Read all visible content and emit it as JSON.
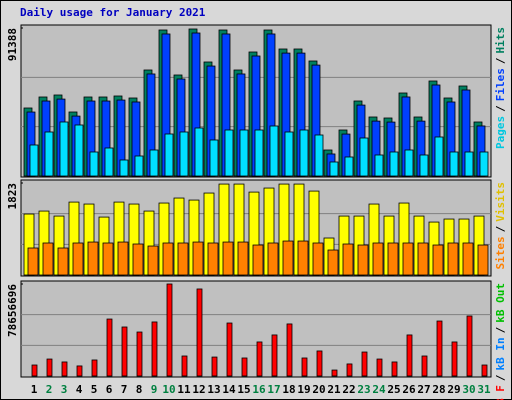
{
  "chart_data": [
    {
      "type": "bar",
      "title": "Daily usage for January 2021",
      "separator": "/",
      "ylim": [
        0,
        91388
      ],
      "yticks": [
        91388
      ],
      "grid": true,
      "series": [
        {
          "name": "Pages",
          "color": "#00e0ff",
          "text_color": "#00c8e0",
          "values": [
            19142,
            27170,
            33345,
            31492,
            14820,
            17290,
            9880,
            12350,
            16055,
            25935,
            27170,
            29640,
            22230,
            28405,
            28405,
            28405,
            30875,
            27170,
            28405,
            25317,
            8645,
            11732,
            23465,
            12967,
            14820,
            16055,
            12967,
            24082,
            14820,
            14820,
            14820
          ]
        },
        {
          "name": "Files",
          "color": "#0040ff",
          "text_color": "#0040ff",
          "values": [
            39500,
            46300,
            47500,
            37000,
            46300,
            46300,
            46900,
            45700,
            63000,
            87700,
            59900,
            88300,
            67900,
            87700,
            63000,
            74100,
            87700,
            75900,
            75900,
            68500,
            13600,
            25900,
            43800,
            33900,
            33300,
            48800,
            33900,
            56200,
            45700,
            53100,
            30900
          ]
        },
        {
          "name": "Hits",
          "color": "#008060",
          "text_color": "#008060",
          "values": [
            41990,
            48782,
            50017,
            39520,
            48782,
            48782,
            49400,
            48165,
            65455,
            90155,
            62367,
            90772,
            70395,
            90155,
            65455,
            76570,
            90155,
            78422,
            78422,
            71012,
            16055,
            28405,
            46312,
            36432,
            35815,
            51252,
            36432,
            58662,
            48165,
            55575,
            33345
          ]
        }
      ]
    },
    {
      "type": "bar",
      "ylim": [
        0,
        1823
      ],
      "yticks": [
        1823
      ],
      "grid": true,
      "series": [
        {
          "name": "Sites",
          "color": "#ff8000",
          "text_color": "#ff8000",
          "values": [
            535,
            634,
            535,
            634,
            653,
            634,
            653,
            614,
            574,
            634,
            634,
            653,
            634,
            653,
            653,
            594,
            634,
            673,
            673,
            634,
            495,
            614,
            594,
            634,
            634,
            634,
            634,
            594,
            634,
            634,
            594
          ]
        },
        {
          "name": "Visits",
          "color": "#ffff00",
          "text_color": "#e0c000",
          "values": [
            1208,
            1267,
            1168,
            1445,
            1406,
            1148,
            1445,
            1406,
            1267,
            1426,
            1525,
            1485,
            1624,
            1802,
            1802,
            1643,
            1723,
            1802,
            1802,
            1663,
            733,
            1168,
            1168,
            1406,
            1168,
            1426,
            1168,
            1049,
            1109,
            1109,
            1168
          ]
        }
      ]
    },
    {
      "type": "bar",
      "ylim": [
        0,
        78656696
      ],
      "yticks": [
        78656696
      ],
      "grid": true,
      "categories": [
        "1",
        "2",
        "3",
        "4",
        "5",
        "6",
        "7",
        "8",
        "9",
        "10",
        "11",
        "12",
        "13",
        "14",
        "15",
        "16",
        "17",
        "18",
        "19",
        "20",
        "21",
        "22",
        "23",
        "24",
        "25",
        "26",
        "27",
        "28",
        "29",
        "30",
        "31"
      ],
      "category_colors": [
        "#000000",
        "#008040",
        "#008040",
        "#000000",
        "#000000",
        "#000000",
        "#000000",
        "#000000",
        "#008040",
        "#008040",
        "#000000",
        "#000000",
        "#000000",
        "#000000",
        "#000000",
        "#008040",
        "#008040",
        "#000000",
        "#000000",
        "#000000",
        "#000000",
        "#000000",
        "#008040",
        "#008040",
        "#000000",
        "#000000",
        "#000000",
        "#000000",
        "#000000",
        "#008040",
        "#008040"
      ],
      "series": [
        {
          "name": "kB F",
          "color": "#ff0000",
          "text_color": "#ff0000",
          "values": [
            9400000,
            14500000,
            12000000,
            8600000,
            13700000,
            48700000,
            41900000,
            37600000,
            46200000,
            78656696,
            17100000,
            74400000,
            16200000,
            45300000,
            15400000,
            29100000,
            35100000,
            44500000,
            15400000,
            21400000,
            5100000,
            10300000,
            20500000,
            14500000,
            12000000,
            35100000,
            17100000,
            47000000,
            29100000,
            51300000,
            9400000
          ]
        },
        {
          "name": "kB In",
          "color": "#0080ff",
          "text_color": "#0080ff",
          "values": [
            0,
            0,
            0,
            0,
            0,
            0,
            0,
            0,
            0,
            0,
            0,
            0,
            0,
            0,
            0,
            0,
            0,
            0,
            0,
            0,
            0,
            0,
            0,
            0,
            0,
            0,
            0,
            0,
            0,
            0,
            0
          ]
        },
        {
          "name": "kB Out",
          "color": "#00c000",
          "text_color": "#00c000",
          "values": [
            0,
            0,
            0,
            0,
            0,
            0,
            0,
            0,
            0,
            0,
            0,
            0,
            0,
            0,
            0,
            0,
            0,
            0,
            0,
            0,
            0,
            0,
            0,
            0,
            0,
            0,
            0,
            0,
            0,
            0,
            0
          ]
        }
      ]
    }
  ]
}
